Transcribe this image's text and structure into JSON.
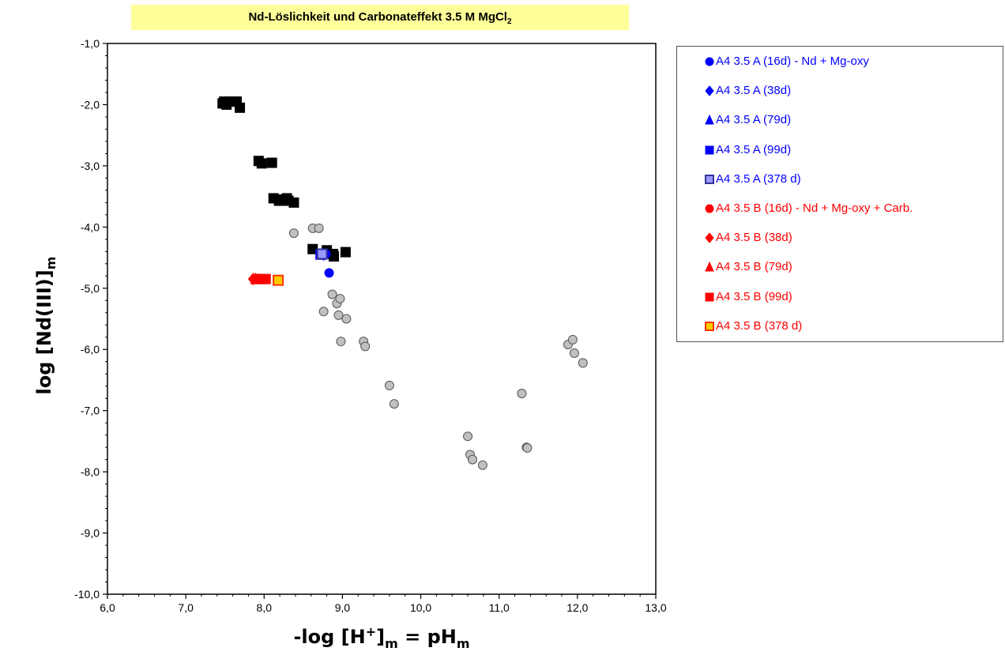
{
  "chart_data": {
    "type": "scatter",
    "title": "Nd-Löslichkeit und Carbonateffekt 3.5 M MgCl",
    "title_sub": "2",
    "xlabel_parts": [
      "-log [H",
      "+",
      "]",
      "m",
      " = pH",
      "m"
    ],
    "ylabel_parts": [
      "log [Nd(III)]",
      "m"
    ],
    "xlim": [
      6.0,
      13.0
    ],
    "ylim": [
      -10.0,
      -1.0
    ],
    "x_ticks": [
      "6,0",
      "7,0",
      "8,0",
      "9,0",
      "10,0",
      "11,0",
      "12,0",
      "13,0"
    ],
    "y_ticks": [
      "-1,0",
      "-2,0",
      "-3,0",
      "-4,0",
      "-5,0",
      "-6,0",
      "-7,0",
      "-8,0",
      "-9,0",
      "-10,0"
    ],
    "grid": false,
    "legend_position": "right",
    "series": [
      {
        "name": "",
        "marker": "circle",
        "color": "#c0c0c0",
        "edge": "#555555",
        "points": [
          [
            8.38,
            -4.1
          ],
          [
            8.62,
            -4.02
          ],
          [
            8.7,
            -4.02
          ],
          [
            8.76,
            -5.38
          ],
          [
            8.87,
            -5.1
          ],
          [
            8.93,
            -5.25
          ],
          [
            8.95,
            -5.44
          ],
          [
            8.97,
            -5.17
          ],
          [
            8.98,
            -5.87
          ],
          [
            9.05,
            -5.5
          ],
          [
            9.27,
            -5.87
          ],
          [
            9.29,
            -5.95
          ],
          [
            9.6,
            -6.59
          ],
          [
            9.66,
            -6.89
          ],
          [
            10.6,
            -7.42
          ],
          [
            10.63,
            -7.72
          ],
          [
            10.66,
            -7.8
          ],
          [
            10.79,
            -7.89
          ],
          [
            11.29,
            -6.72
          ],
          [
            11.35,
            -7.6
          ],
          [
            11.36,
            -7.61
          ],
          [
            11.88,
            -5.92
          ],
          [
            11.94,
            -5.84
          ],
          [
            11.96,
            -6.06
          ],
          [
            12.07,
            -6.22
          ]
        ]
      },
      {
        "name": "",
        "marker": "square",
        "color": "#000000",
        "edge": "#000000",
        "points": [
          [
            7.47,
            -1.98
          ],
          [
            7.49,
            -1.95
          ],
          [
            7.52,
            -2.0
          ],
          [
            7.56,
            -1.95
          ],
          [
            7.65,
            -1.95
          ],
          [
            7.69,
            -2.05
          ],
          [
            7.93,
            -2.92
          ],
          [
            7.97,
            -2.96
          ],
          [
            8.1,
            -2.95
          ],
          [
            8.12,
            -3.53
          ],
          [
            8.19,
            -3.57
          ],
          [
            8.22,
            -3.55
          ],
          [
            8.29,
            -3.53
          ],
          [
            8.31,
            -3.57
          ],
          [
            8.38,
            -3.6
          ],
          [
            8.62,
            -4.36
          ],
          [
            8.8,
            -4.38
          ],
          [
            8.88,
            -4.44
          ],
          [
            8.89,
            -4.48
          ],
          [
            9.04,
            -4.41
          ]
        ]
      },
      {
        "name": "A4 3.5 A (16d) - Nd + Mg-oxy",
        "marker": "circle",
        "color": "#0000ff",
        "edge": "#0000ff",
        "points": [
          [
            8.79,
            -4.44
          ],
          [
            8.83,
            -4.75
          ]
        ]
      },
      {
        "name": "A4 3.5 A (38d)",
        "marker": "diamond",
        "color": "#0000ff",
        "edge": "#0000ff",
        "points": [
          [
            8.76,
            -4.45
          ]
        ]
      },
      {
        "name": "A4 3.5 A (79d)",
        "marker": "triangle",
        "color": "#0000ff",
        "edge": "#0000ff",
        "points": [
          [
            8.74,
            -4.45
          ]
        ]
      },
      {
        "name": "A4 3.5 A (99d)",
        "marker": "square",
        "color": "#0000ff",
        "edge": "#0000ff",
        "points": [
          [
            8.72,
            -4.45
          ]
        ]
      },
      {
        "name": "A4 3.5 A (378 d)",
        "marker": "hatched",
        "color": "#9999ff",
        "edge": "#333399",
        "points": [
          [
            8.74,
            -4.44
          ]
        ]
      },
      {
        "name": "A4 3.5 B (16d) - Nd + Mg-oxy + Carb.",
        "marker": "circle",
        "color": "#ff0000",
        "edge": "#ff0000",
        "points": [
          [
            7.92,
            -4.84
          ],
          [
            7.97,
            -4.85
          ]
        ]
      },
      {
        "name": "A4 3.5 B (38d)",
        "marker": "diamond",
        "color": "#ff0000",
        "edge": "#ff0000",
        "points": [
          [
            7.86,
            -4.85
          ]
        ]
      },
      {
        "name": "A4 3.5 B (79d)",
        "marker": "triangle",
        "color": "#ff0000",
        "edge": "#ff0000",
        "points": [
          [
            7.89,
            -4.85
          ]
        ]
      },
      {
        "name": "A4 3.5 B (99d)",
        "marker": "square",
        "color": "#ff0000",
        "edge": "#ff0000",
        "points": [
          [
            7.95,
            -4.85
          ],
          [
            8.02,
            -4.85
          ]
        ]
      },
      {
        "name": "A4 3.5 B (378 d)",
        "marker": "hatched",
        "color": "#ffcc00",
        "edge": "#ff3300",
        "points": [
          [
            8.18,
            -4.87
          ]
        ]
      }
    ]
  }
}
